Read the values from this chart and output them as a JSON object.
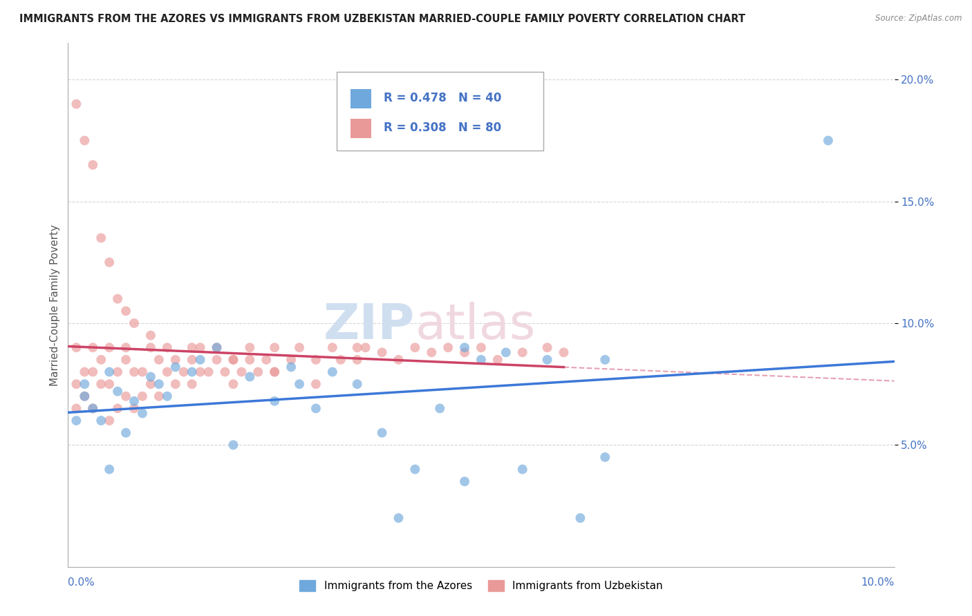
{
  "title": "IMMIGRANTS FROM THE AZORES VS IMMIGRANTS FROM UZBEKISTAN MARRIED-COUPLE FAMILY POVERTY CORRELATION CHART",
  "source": "Source: ZipAtlas.com",
  "ylabel": "Married-Couple Family Poverty",
  "legend_azores": {
    "R": 0.478,
    "N": 40
  },
  "legend_uzbekistan": {
    "R": 0.308,
    "N": 80
  },
  "azores_color": "#6fa8dc",
  "uzbekistan_color": "#ea9999",
  "azores_line_color": "#3c78d8",
  "uzbekistan_line_color": "#cc4466",
  "uzbekistan_dash_color": "#cc4466",
  "background_color": "#ffffff",
  "grid_color": "#cccccc",
  "tick_color": "#4472c4",
  "title_color": "#222222",
  "ylabel_color": "#555555",
  "watermark_zip_color": "#d0dff0",
  "watermark_atlas_color": "#f0d8e0",
  "title_fontsize": 10.5,
  "tick_fontsize": 11,
  "ylabel_fontsize": 11
}
